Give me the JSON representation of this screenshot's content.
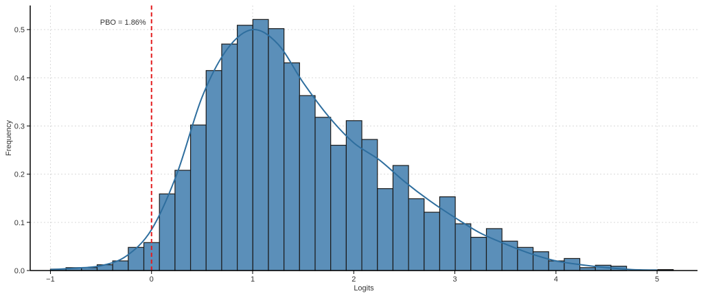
{
  "chart_data": {
    "type": "bar",
    "title": "",
    "xlabel": "Logits",
    "ylabel": "Frequency",
    "xlim": [
      -1.2,
      5.4
    ],
    "ylim": [
      0,
      0.55
    ],
    "grid": true,
    "grid_style": "dotted",
    "bar_color": "#5b8fb9",
    "edge_color": "#1a1a1a",
    "kde_color": "#2e6e9e",
    "threshold_color": "#e31a1c",
    "x_ticks": [
      -1,
      0,
      1,
      2,
      3,
      4,
      5
    ],
    "x_tick_labels": [
      "−1",
      "0",
      "1",
      "2",
      "3",
      "4",
      "5"
    ],
    "y_ticks": [
      0.0,
      0.1,
      0.2,
      0.3,
      0.4,
      0.5
    ],
    "y_tick_labels": [
      "0.0",
      "0.1",
      "0.2",
      "0.3",
      "0.4",
      "0.5"
    ],
    "bin_edges": [
      -1.0,
      -0.846,
      -0.692,
      -0.538,
      -0.384,
      -0.23,
      -0.076,
      0.078,
      0.232,
      0.386,
      0.54,
      0.694,
      0.848,
      1.002,
      1.156,
      1.31,
      1.464,
      1.618,
      1.772,
      1.926,
      2.08,
      2.234,
      2.388,
      2.542,
      2.696,
      2.85,
      3.004,
      3.158,
      3.312,
      3.466,
      3.62,
      3.774,
      3.928,
      4.082,
      4.236,
      4.39,
      4.544,
      4.698,
      4.852,
      5.006,
      5.16
    ],
    "values": [
      0.003,
      0.006,
      0.006,
      0.012,
      0.02,
      0.048,
      0.058,
      0.159,
      0.208,
      0.302,
      0.415,
      0.47,
      0.509,
      0.521,
      0.502,
      0.431,
      0.363,
      0.318,
      0.26,
      0.311,
      0.272,
      0.17,
      0.218,
      0.149,
      0.121,
      0.153,
      0.097,
      0.069,
      0.087,
      0.061,
      0.048,
      0.039,
      0.02,
      0.025,
      0.006,
      0.011,
      0.009,
      0.0,
      0.0,
      0.002
    ],
    "kde": {
      "x": [
        -1.0,
        -0.75,
        -0.5,
        -0.25,
        0.0,
        0.25,
        0.5,
        0.75,
        1.0,
        1.25,
        1.5,
        1.75,
        2.0,
        2.25,
        2.5,
        2.75,
        3.0,
        3.25,
        3.5,
        3.75,
        4.0,
        4.25,
        4.5,
        4.75,
        5.0
      ],
      "y": [
        0.002,
        0.005,
        0.01,
        0.03,
        0.085,
        0.2,
        0.36,
        0.46,
        0.5,
        0.47,
        0.39,
        0.32,
        0.265,
        0.23,
        0.185,
        0.145,
        0.11,
        0.078,
        0.055,
        0.035,
        0.02,
        0.012,
        0.006,
        0.002,
        0.001
      ]
    },
    "threshold": {
      "x": 0.0,
      "label": "PBO = 1.86%"
    }
  }
}
